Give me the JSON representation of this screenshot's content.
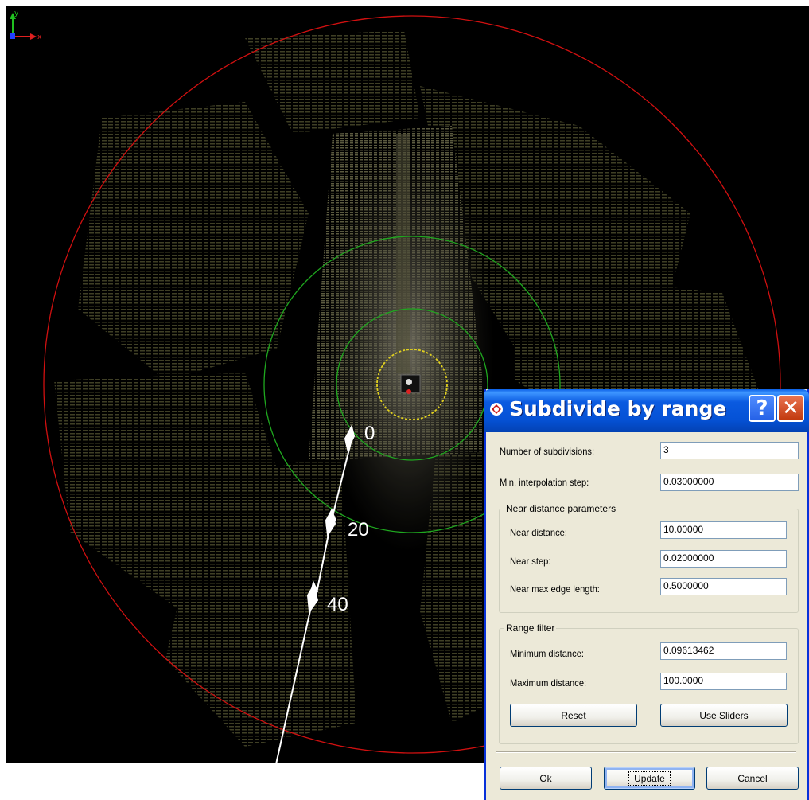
{
  "viewport": {
    "axis_y_label": "y",
    "axis_x_label": "x",
    "range_labels": [
      "0",
      "20",
      "40"
    ],
    "colors": {
      "outer_circle": "#d01010",
      "near_circles": "#1fa81f",
      "inner_circle": "#e0d020",
      "arrow": "#ffffff"
    }
  },
  "dialog": {
    "title": "Subdivide by range",
    "help_label": "?",
    "close_label": "✕",
    "number_of_subdivisions": {
      "label": "Number of subdivisions:",
      "value": "3"
    },
    "min_interpolation_step": {
      "label": "Min. interpolation step:",
      "value": "0.03000000"
    },
    "near_group": {
      "title": "Near distance parameters",
      "near_distance": {
        "label": "Near distance:",
        "value": "10.00000"
      },
      "near_step": {
        "label": "Near step:",
        "value": "0.02000000"
      },
      "near_max_edge_length": {
        "label": "Near max edge length:",
        "value": "0.5000000"
      }
    },
    "range_group": {
      "title": "Range filter",
      "minimum_distance": {
        "label": "Minimum distance:",
        "value": "0.09613462"
      },
      "maximum_distance": {
        "label": "Maximum distance:",
        "value": "100.0000"
      },
      "reset_label": "Reset",
      "use_sliders_label": "Use Sliders"
    },
    "ok_label": "Ok",
    "update_label": "Update",
    "cancel_label": "Cancel"
  }
}
